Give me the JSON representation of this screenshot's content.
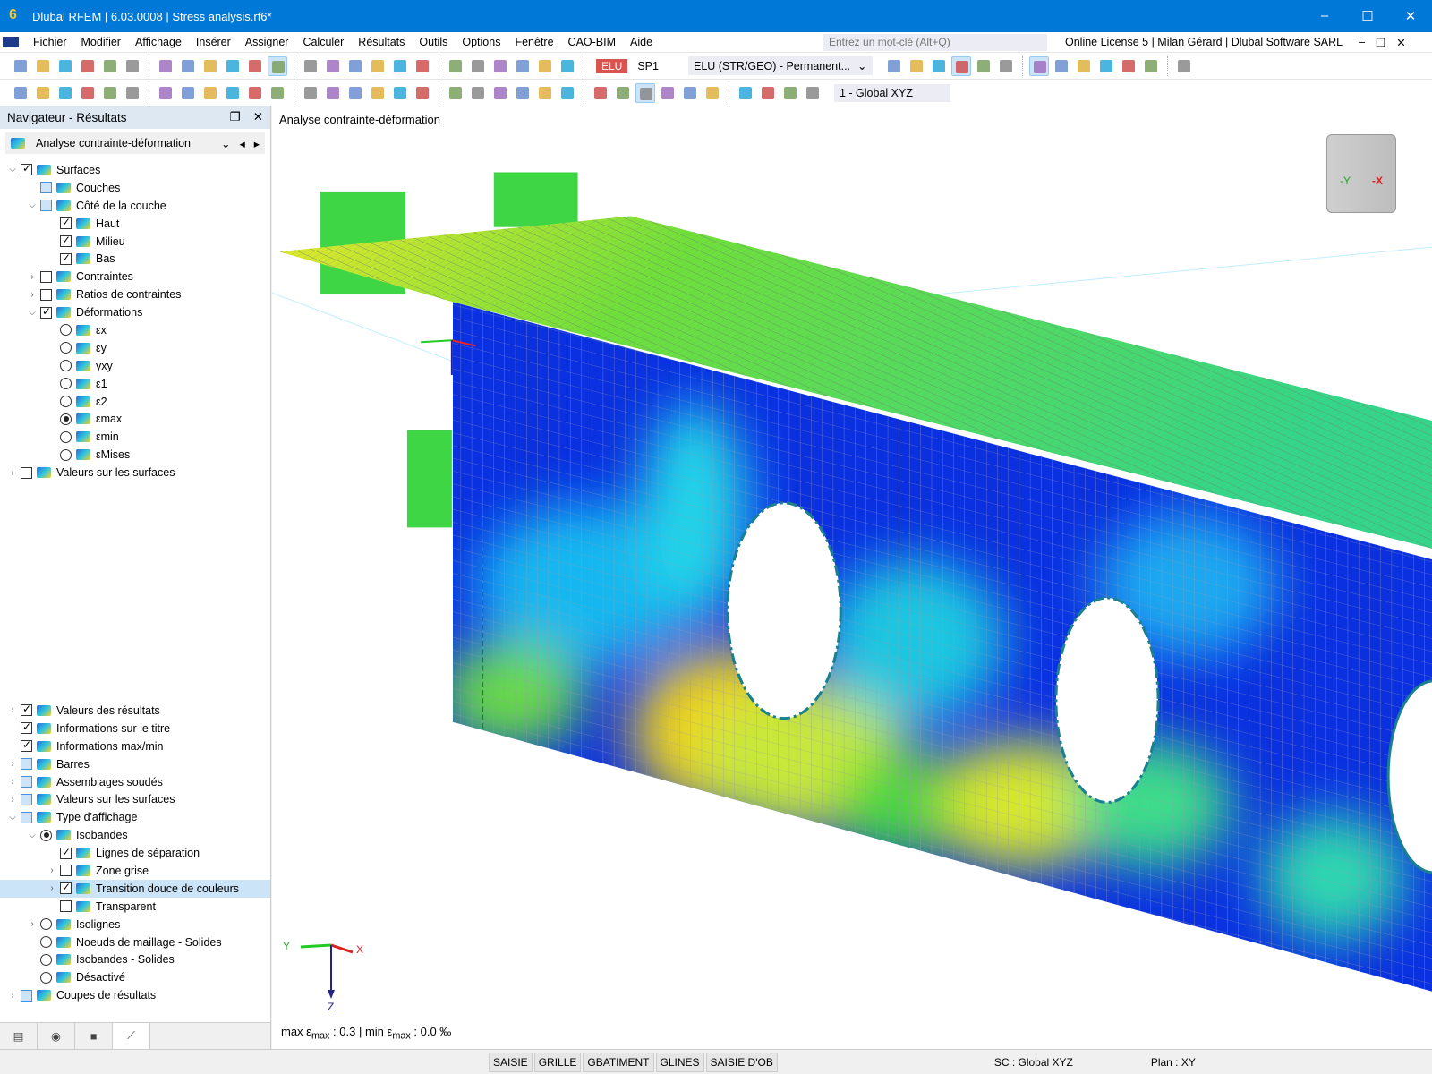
{
  "window": {
    "title": "Dlubal RFEM | 6.03.0008 | Stress analysis.rf6*",
    "logo": "6",
    "minimize": "–",
    "maximize": "☐",
    "close": "✕"
  },
  "menu": [
    "Fichier",
    "Modifier",
    "Affichage",
    "Insérer",
    "Assigner",
    "Calculer",
    "Résultats",
    "Outils",
    "Options",
    "Fenêtre",
    "CAO-BIM",
    "Aide"
  ],
  "search": {
    "placeholder": "Entrez un mot-clé (Alt+Q)"
  },
  "license": "Online License 5 | Milan Gérard | Dlubal Software SARL",
  "toolbar1": {
    "icons": [
      "new-model",
      "open",
      "dlubal-center",
      "webservice",
      "print-preview",
      "save",
      "copy",
      "report",
      "document",
      "undo",
      "redo",
      "table-view",
      "table",
      "color-table",
      "console",
      "script",
      "panel",
      "surface",
      "node-result",
      "target",
      "cloud",
      "section",
      "model-a",
      "model-b"
    ],
    "load_type": "ELU",
    "load_case": "SP1",
    "combination": "ELU (STR/GEO) - Permanent...",
    "icons_right": [
      "filter-result",
      "deform",
      "values",
      "result-on",
      "values-off",
      "solid",
      "grid-result",
      "cut",
      "value-labels",
      "move",
      "diagram",
      "delete-result",
      "box"
    ]
  },
  "toolbar2": {
    "icons": [
      "node",
      "line",
      "member",
      "surface",
      "support",
      "hinge",
      "foundation",
      "dimension",
      "xx",
      "grid",
      "solid-a",
      "solid-b",
      "frame",
      "walls",
      "cube",
      "lock",
      "pin",
      "beam-a",
      "beam-b",
      "beam-c",
      "beam-d",
      "sheet",
      "filter",
      "magnet",
      "film",
      "curve",
      "isobands",
      "solid-view",
      "arrows",
      "pen",
      "line-a",
      "line-b",
      "line-c",
      "line-d"
    ],
    "coord_system": "1 - Global XYZ"
  },
  "navigator": {
    "title": "Navigateur - Résultats",
    "selector": "Analyse contrainte-déformation",
    "top": [
      {
        "lvl": 0,
        "exp": "v",
        "ctl": "cb",
        "state": "chk",
        "label": "Surfaces"
      },
      {
        "lvl": 1,
        "exp": "",
        "ctl": "cb",
        "state": "part",
        "label": "Couches"
      },
      {
        "lvl": 1,
        "exp": "v",
        "ctl": "cb",
        "state": "part",
        "label": "Côté de la couche"
      },
      {
        "lvl": 2,
        "exp": "",
        "ctl": "cb",
        "state": "chk",
        "label": "Haut"
      },
      {
        "lvl": 2,
        "exp": "",
        "ctl": "cb",
        "state": "chk",
        "label": "Milieu"
      },
      {
        "lvl": 2,
        "exp": "",
        "ctl": "cb",
        "state": "chk",
        "label": "Bas"
      },
      {
        "lvl": 1,
        "exp": ">",
        "ctl": "cb",
        "state": "",
        "label": "Contraintes"
      },
      {
        "lvl": 1,
        "exp": ">",
        "ctl": "cb",
        "state": "",
        "label": "Ratios de contraintes"
      },
      {
        "lvl": 1,
        "exp": "v",
        "ctl": "cb",
        "state": "chk",
        "label": "Déformations"
      },
      {
        "lvl": 2,
        "exp": "",
        "ctl": "rd",
        "state": "",
        "label": "εx"
      },
      {
        "lvl": 2,
        "exp": "",
        "ctl": "rd",
        "state": "",
        "label": "εy"
      },
      {
        "lvl": 2,
        "exp": "",
        "ctl": "rd",
        "state": "",
        "label": "γxy"
      },
      {
        "lvl": 2,
        "exp": "",
        "ctl": "rd",
        "state": "",
        "label": "ε1"
      },
      {
        "lvl": 2,
        "exp": "",
        "ctl": "rd",
        "state": "",
        "label": "ε2"
      },
      {
        "lvl": 2,
        "exp": "",
        "ctl": "rd",
        "state": "chk",
        "label": "εmax"
      },
      {
        "lvl": 2,
        "exp": "",
        "ctl": "rd",
        "state": "",
        "label": "εmin"
      },
      {
        "lvl": 2,
        "exp": "",
        "ctl": "rd",
        "state": "",
        "label": "εMises"
      },
      {
        "lvl": 0,
        "exp": ">",
        "ctl": "cb",
        "state": "",
        "label": "Valeurs sur les surfaces"
      }
    ],
    "bottom": [
      {
        "lvl": 0,
        "exp": ">",
        "ctl": "cb",
        "state": "chk",
        "label": "Valeurs des résultats"
      },
      {
        "lvl": 0,
        "exp": "",
        "ctl": "cb",
        "state": "chk",
        "label": "Informations sur le titre"
      },
      {
        "lvl": 0,
        "exp": "",
        "ctl": "cb",
        "state": "chk",
        "label": "Informations max/min"
      },
      {
        "lvl": 0,
        "exp": ">",
        "ctl": "cb",
        "state": "part",
        "label": "Barres"
      },
      {
        "lvl": 0,
        "exp": ">",
        "ctl": "cb",
        "state": "part",
        "label": "Assemblages soudés"
      },
      {
        "lvl": 0,
        "exp": ">",
        "ctl": "cb",
        "state": "part",
        "label": "Valeurs sur les surfaces"
      },
      {
        "lvl": 0,
        "exp": "v",
        "ctl": "cb",
        "state": "part",
        "label": "Type d'affichage"
      },
      {
        "lvl": 1,
        "exp": "v",
        "ctl": "rd",
        "state": "chk",
        "label": "Isobandes"
      },
      {
        "lvl": 2,
        "exp": "",
        "ctl": "cb",
        "state": "chk",
        "label": "Lignes de séparation"
      },
      {
        "lvl": 2,
        "exp": ">",
        "ctl": "cb",
        "state": "",
        "label": "Zone grise"
      },
      {
        "lvl": 2,
        "exp": ">",
        "ctl": "cb",
        "state": "chk",
        "label": "Transition douce de couleurs",
        "selected": true
      },
      {
        "lvl": 2,
        "exp": "",
        "ctl": "cb",
        "state": "",
        "label": "Transparent"
      },
      {
        "lvl": 1,
        "exp": ">",
        "ctl": "rd",
        "state": "",
        "label": "Isolignes"
      },
      {
        "lvl": 1,
        "exp": "",
        "ctl": "rd",
        "state": "",
        "label": "Noeuds de maillage - Solides"
      },
      {
        "lvl": 1,
        "exp": "",
        "ctl": "rd",
        "state": "",
        "label": "Isobandes - Solides"
      },
      {
        "lvl": 1,
        "exp": "",
        "ctl": "rd",
        "state": "",
        "label": "Désactivé"
      },
      {
        "lvl": 0,
        "exp": ">",
        "ctl": "cb",
        "state": "part",
        "label": "Coupes de résultats"
      }
    ],
    "tabs": [
      "data-icon",
      "eye-icon",
      "camera-icon",
      "results-icon"
    ]
  },
  "view": {
    "title": "Analyse contrainte-déformation",
    "legend": {
      "p1": "max ε",
      "s1": "max",
      "p2": " : 0.3 | min ε",
      "s2": "max",
      "p3": " : 0.0 ‰"
    },
    "axes": {
      "x": "X",
      "y": "Y",
      "z": "Z"
    },
    "cube": {
      "y": "-Y",
      "x": "-X"
    }
  },
  "statusbar": {
    "buttons": [
      "SAISIE",
      "GRILLE",
      "GBATIMENT",
      "GLINES",
      "SAISIE D'OB"
    ],
    "cs": "SC : Global XYZ",
    "plane": "Plan : XY"
  },
  "colors": {
    "accent": "#0078d7",
    "selection": "#cce4f7",
    "elu": "#d9534f"
  }
}
